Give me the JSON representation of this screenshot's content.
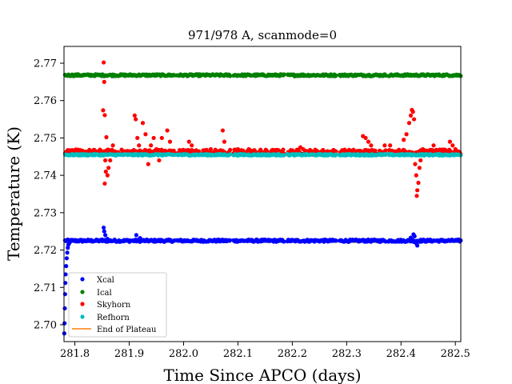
{
  "chart_data": {
    "type": "scatter",
    "title": "971/978 A, scanmode=0",
    "xlabel": "Time Since APCO (days)",
    "ylabel": "Temperature (K)",
    "xlim": [
      281.78,
      282.51
    ],
    "ylim": [
      2.6955,
      2.7745
    ],
    "xticks": [
      281.8,
      281.9,
      282.0,
      282.1,
      282.2,
      282.3,
      282.4,
      282.5
    ],
    "xtick_labels": [
      "281.8",
      "281.9",
      "282.0",
      "282.1",
      "282.2",
      "282.3",
      "282.4",
      "282.5"
    ],
    "yticks": [
      2.7,
      2.71,
      2.72,
      2.73,
      2.74,
      2.75,
      2.76,
      2.77
    ],
    "ytick_labels": [
      "2.70",
      "2.71",
      "2.72",
      "2.73",
      "2.74",
      "2.75",
      "2.76",
      "2.77"
    ],
    "grid": false,
    "legend_position": "lower-left",
    "segments": [
      [
        281.782,
        281.985
      ],
      [
        281.988,
        282.087
      ],
      [
        282.092,
        282.186
      ],
      [
        282.191,
        282.282
      ],
      [
        282.287,
        282.372
      ],
      [
        282.377,
        282.51
      ]
    ],
    "series": [
      {
        "name": "Xcal",
        "color": "#0000ff",
        "marker": "dot",
        "baseline": 2.7225,
        "plateau": 2.7222,
        "noise": 0.0003,
        "points": [
          [
            281.7805,
            2.6977
          ],
          [
            281.781,
            2.7004
          ],
          [
            281.7815,
            2.7044
          ],
          [
            281.782,
            2.7082
          ],
          [
            281.7825,
            2.7112
          ],
          [
            281.783,
            2.7135
          ],
          [
            281.784,
            2.7157
          ],
          [
            281.785,
            2.7178
          ],
          [
            281.786,
            2.7193
          ],
          [
            281.787,
            2.7206
          ],
          [
            281.788,
            2.7214
          ],
          [
            281.79,
            2.7219
          ],
          [
            281.853,
            2.726
          ],
          [
            281.854,
            2.725
          ],
          [
            281.856,
            2.724
          ],
          [
            281.86,
            2.723
          ],
          [
            281.85,
            2.7228
          ],
          [
            281.913,
            2.724
          ],
          [
            281.92,
            2.7232
          ],
          [
            282.423,
            2.7242
          ],
          [
            282.425,
            2.7237
          ],
          [
            282.428,
            2.7218
          ],
          [
            282.43,
            2.7212
          ],
          [
            282.418,
            2.7233
          ]
        ]
      },
      {
        "name": "Ical",
        "color": "#008000",
        "marker": "dot",
        "baseline": 2.7668,
        "plateau": 2.7666,
        "noise": 0.00025,
        "points": []
      },
      {
        "name": "Skyhorn",
        "color": "#ff0000",
        "marker": "dot",
        "baseline": 2.7462,
        "plateau": 2.746,
        "noise": 0.0007,
        "points": [
          [
            281.853,
            2.7702
          ],
          [
            281.854,
            2.765
          ],
          [
            281.852,
            2.7574
          ],
          [
            281.855,
            2.7561
          ],
          [
            281.858,
            2.7502
          ],
          [
            281.856,
            2.744
          ],
          [
            281.857,
            2.741
          ],
          [
            281.855,
            2.7378
          ],
          [
            281.86,
            2.74
          ],
          [
            281.862,
            2.742
          ],
          [
            281.865,
            2.744
          ],
          [
            281.87,
            2.748
          ],
          [
            281.91,
            2.756
          ],
          [
            281.912,
            2.755
          ],
          [
            281.915,
            2.75
          ],
          [
            281.918,
            2.748
          ],
          [
            281.925,
            2.754
          ],
          [
            281.93,
            2.751
          ],
          [
            281.935,
            2.743
          ],
          [
            281.94,
            2.748
          ],
          [
            281.945,
            2.75
          ],
          [
            281.95,
            2.747
          ],
          [
            281.955,
            2.744
          ],
          [
            281.96,
            2.75
          ],
          [
            281.97,
            2.752
          ],
          [
            281.975,
            2.749
          ],
          [
            282.01,
            2.749
          ],
          [
            282.015,
            2.748
          ],
          [
            282.05,
            2.747
          ],
          [
            282.072,
            2.752
          ],
          [
            282.075,
            2.749
          ],
          [
            282.1,
            2.747
          ],
          [
            282.12,
            2.747
          ],
          [
            282.215,
            2.7475
          ],
          [
            282.22,
            2.747
          ],
          [
            282.33,
            2.7505
          ],
          [
            282.335,
            2.75
          ],
          [
            282.34,
            2.749
          ],
          [
            282.345,
            2.748
          ],
          [
            282.37,
            2.748
          ],
          [
            282.38,
            2.748
          ],
          [
            282.405,
            2.7495
          ],
          [
            282.41,
            2.751
          ],
          [
            282.415,
            2.754
          ],
          [
            282.418,
            2.756
          ],
          [
            282.42,
            2.7575
          ],
          [
            282.422,
            2.757
          ],
          [
            282.424,
            2.755
          ],
          [
            282.426,
            2.743
          ],
          [
            282.428,
            2.74
          ],
          [
            282.43,
            2.736
          ],
          [
            282.429,
            2.7345
          ],
          [
            282.432,
            2.738
          ],
          [
            282.434,
            2.742
          ],
          [
            282.436,
            2.744
          ],
          [
            282.44,
            2.747
          ],
          [
            282.46,
            2.748
          ],
          [
            282.49,
            2.749
          ],
          [
            282.495,
            2.748
          ],
          [
            282.5,
            2.747
          ]
        ]
      },
      {
        "name": "Refhorn",
        "color": "#00bfbf",
        "marker": "dot",
        "baseline": 2.7455,
        "plateau": 2.7457,
        "noise": 0.0002,
        "points": []
      },
      {
        "name": "End of Plateau",
        "color": "#ff7f0e",
        "marker": "line",
        "points": []
      }
    ]
  }
}
